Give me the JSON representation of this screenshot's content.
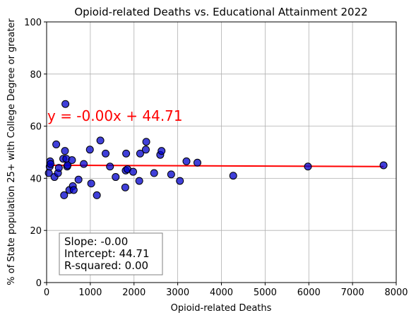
{
  "chart_data": {
    "type": "scatter",
    "title": "Opioid-related Deaths vs. Educational Attainment 2022",
    "xlabel": "Opioid-related Deaths",
    "ylabel": "% of State population 25+ with College Degree or greater",
    "xlim": [
      0,
      8000
    ],
    "ylim": [
      0,
      100
    ],
    "x_ticks": [
      0,
      1000,
      2000,
      3000,
      4000,
      5000,
      6000,
      7000,
      8000
    ],
    "y_ticks": [
      0,
      20,
      40,
      60,
      80,
      100
    ],
    "grid": true,
    "colors": {
      "points": "#0000cc",
      "point_edge": "#000000",
      "fit_line": "#ff0000",
      "equation": "#ff0000"
    },
    "points": [
      {
        "x": 50,
        "y": 42
      },
      {
        "x": 70,
        "y": 44.5
      },
      {
        "x": 80,
        "y": 46.5
      },
      {
        "x": 90,
        "y": 45.5
      },
      {
        "x": 180,
        "y": 40.5
      },
      {
        "x": 220,
        "y": 53
      },
      {
        "x": 260,
        "y": 42
      },
      {
        "x": 280,
        "y": 44
      },
      {
        "x": 380,
        "y": 47.5
      },
      {
        "x": 400,
        "y": 33.5
      },
      {
        "x": 420,
        "y": 50.5
      },
      {
        "x": 430,
        "y": 68.5
      },
      {
        "x": 450,
        "y": 47.5
      },
      {
        "x": 470,
        "y": 44.5
      },
      {
        "x": 480,
        "y": 45
      },
      {
        "x": 520,
        "y": 35.5
      },
      {
        "x": 580,
        "y": 47
      },
      {
        "x": 600,
        "y": 37
      },
      {
        "x": 620,
        "y": 35.5
      },
      {
        "x": 730,
        "y": 39.5
      },
      {
        "x": 850,
        "y": 45.5
      },
      {
        "x": 990,
        "y": 51
      },
      {
        "x": 1020,
        "y": 38
      },
      {
        "x": 1150,
        "y": 33.5
      },
      {
        "x": 1230,
        "y": 54.5
      },
      {
        "x": 1350,
        "y": 49.5
      },
      {
        "x": 1450,
        "y": 44.5
      },
      {
        "x": 1580,
        "y": 40.5
      },
      {
        "x": 1800,
        "y": 36.5
      },
      {
        "x": 1810,
        "y": 43
      },
      {
        "x": 1820,
        "y": 49.5
      },
      {
        "x": 1850,
        "y": 43.5
      },
      {
        "x": 1980,
        "y": 42.5
      },
      {
        "x": 2120,
        "y": 39
      },
      {
        "x": 2140,
        "y": 49.5
      },
      {
        "x": 2270,
        "y": 51
      },
      {
        "x": 2280,
        "y": 54
      },
      {
        "x": 2460,
        "y": 42
      },
      {
        "x": 2600,
        "y": 49
      },
      {
        "x": 2630,
        "y": 50.5
      },
      {
        "x": 2850,
        "y": 41.5
      },
      {
        "x": 3050,
        "y": 39
      },
      {
        "x": 3200,
        "y": 46.5
      },
      {
        "x": 3450,
        "y": 46
      },
      {
        "x": 4270,
        "y": 41
      },
      {
        "x": 5980,
        "y": 44.5
      },
      {
        "x": 7710,
        "y": 45
      }
    ],
    "regression": {
      "slope": -0.0,
      "intercept": 44.71,
      "line_y": [
        45.0,
        44.5
      ],
      "equation_label": "y = -0.00x + 44.71",
      "slope_label": "Slope: -0.00",
      "intercept_label": "Intercept: 44.71",
      "r2_label": "R-squared: 0.00"
    }
  }
}
